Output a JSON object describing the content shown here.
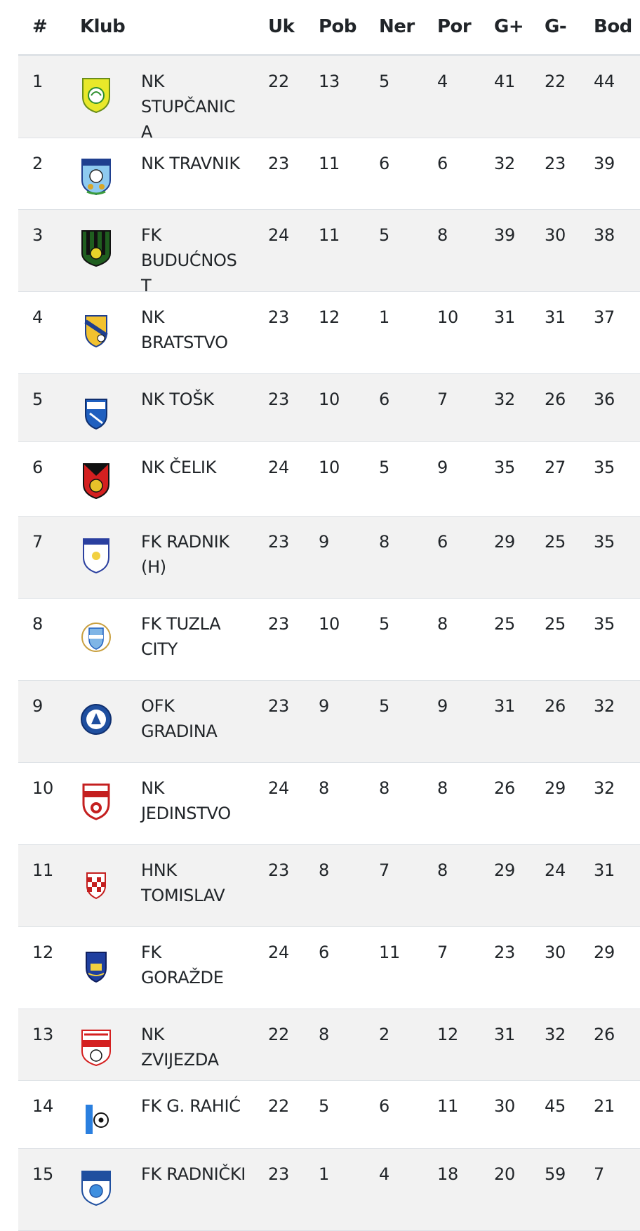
{
  "table": {
    "headers": {
      "pos": "#",
      "club": "Klub",
      "played": "Uk",
      "won": "Pob",
      "drawn": "Ner",
      "lost": "Por",
      "goals_for": "G+",
      "goals_against": "G-",
      "points": "Bod"
    },
    "rows": [
      {
        "pos": "1",
        "club": "NK STUPČANICA",
        "crest_icon": "stupcanica-crest-icon",
        "played": "22",
        "won": "13",
        "drawn": "5",
        "lost": "4",
        "goals_for": "41",
        "goals_against": "22",
        "points": "44"
      },
      {
        "pos": "2",
        "club": "NK TRAVNIK",
        "crest_icon": "travnik-crest-icon",
        "played": "23",
        "won": "11",
        "drawn": "6",
        "lost": "6",
        "goals_for": "32",
        "goals_against": "23",
        "points": "39"
      },
      {
        "pos": "3",
        "club": "FK BUDUĆNOST",
        "crest_icon": "buducnost-crest-icon",
        "played": "24",
        "won": "11",
        "drawn": "5",
        "lost": "8",
        "goals_for": "39",
        "goals_against": "30",
        "points": "38"
      },
      {
        "pos": "4",
        "club": "NK BRATSTVO",
        "crest_icon": "bratstvo-crest-icon",
        "played": "23",
        "won": "12",
        "drawn": "1",
        "lost": "10",
        "goals_for": "31",
        "goals_against": "31",
        "points": "37"
      },
      {
        "pos": "5",
        "club": "NK TOŠK",
        "crest_icon": "tosk-crest-icon",
        "played": "23",
        "won": "10",
        "drawn": "6",
        "lost": "7",
        "goals_for": "32",
        "goals_against": "26",
        "points": "36"
      },
      {
        "pos": "6",
        "club": "NK ČELIK",
        "crest_icon": "celik-crest-icon",
        "played": "24",
        "won": "10",
        "drawn": "5",
        "lost": "9",
        "goals_for": "35",
        "goals_against": "27",
        "points": "35"
      },
      {
        "pos": "7",
        "club": "FK RADNIK (H)",
        "crest_icon": "radnik-crest-icon",
        "played": "23",
        "won": "9",
        "drawn": "8",
        "lost": "6",
        "goals_for": "29",
        "goals_against": "25",
        "points": "35"
      },
      {
        "pos": "8",
        "club": "FK TUZLA CITY",
        "crest_icon": "tuzla-city-crest-icon",
        "played": "23",
        "won": "10",
        "drawn": "5",
        "lost": "8",
        "goals_for": "25",
        "goals_against": "25",
        "points": "35"
      },
      {
        "pos": "9",
        "club": "OFK GRADINA",
        "crest_icon": "gradina-crest-icon",
        "played": "23",
        "won": "9",
        "drawn": "5",
        "lost": "9",
        "goals_for": "31",
        "goals_against": "26",
        "points": "32"
      },
      {
        "pos": "10",
        "club": "NK JEDINSTVO",
        "crest_icon": "jedinstvo-crest-icon",
        "played": "24",
        "won": "8",
        "drawn": "8",
        "lost": "8",
        "goals_for": "26",
        "goals_against": "29",
        "points": "32"
      },
      {
        "pos": "11",
        "club": "HNK TOMISLAV",
        "crest_icon": "tomislav-crest-icon",
        "played": "23",
        "won": "8",
        "drawn": "7",
        "lost": "8",
        "goals_for": "29",
        "goals_against": "24",
        "points": "31"
      },
      {
        "pos": "12",
        "club": "FK GORAŽDE",
        "crest_icon": "gorazde-crest-icon",
        "played": "24",
        "won": "6",
        "drawn": "11",
        "lost": "7",
        "goals_for": "23",
        "goals_against": "30",
        "points": "29"
      },
      {
        "pos": "13",
        "club": "NK ZVIJEZDA",
        "crest_icon": "zvijezda-crest-icon",
        "played": "22",
        "won": "8",
        "drawn": "2",
        "lost": "12",
        "goals_for": "31",
        "goals_against": "32",
        "points": "26"
      },
      {
        "pos": "14",
        "club": "FK G. RAHIĆ",
        "crest_icon": "rahic-crest-icon",
        "played": "22",
        "won": "5",
        "drawn": "6",
        "lost": "11",
        "goals_for": "30",
        "goals_against": "45",
        "points": "21"
      },
      {
        "pos": "15",
        "club": "FK RADNIČKI",
        "crest_icon": "radnicki-crest-icon",
        "played": "23",
        "won": "1",
        "drawn": "4",
        "lost": "18",
        "goals_for": "20",
        "goals_against": "59",
        "points": "7"
      }
    ]
  }
}
